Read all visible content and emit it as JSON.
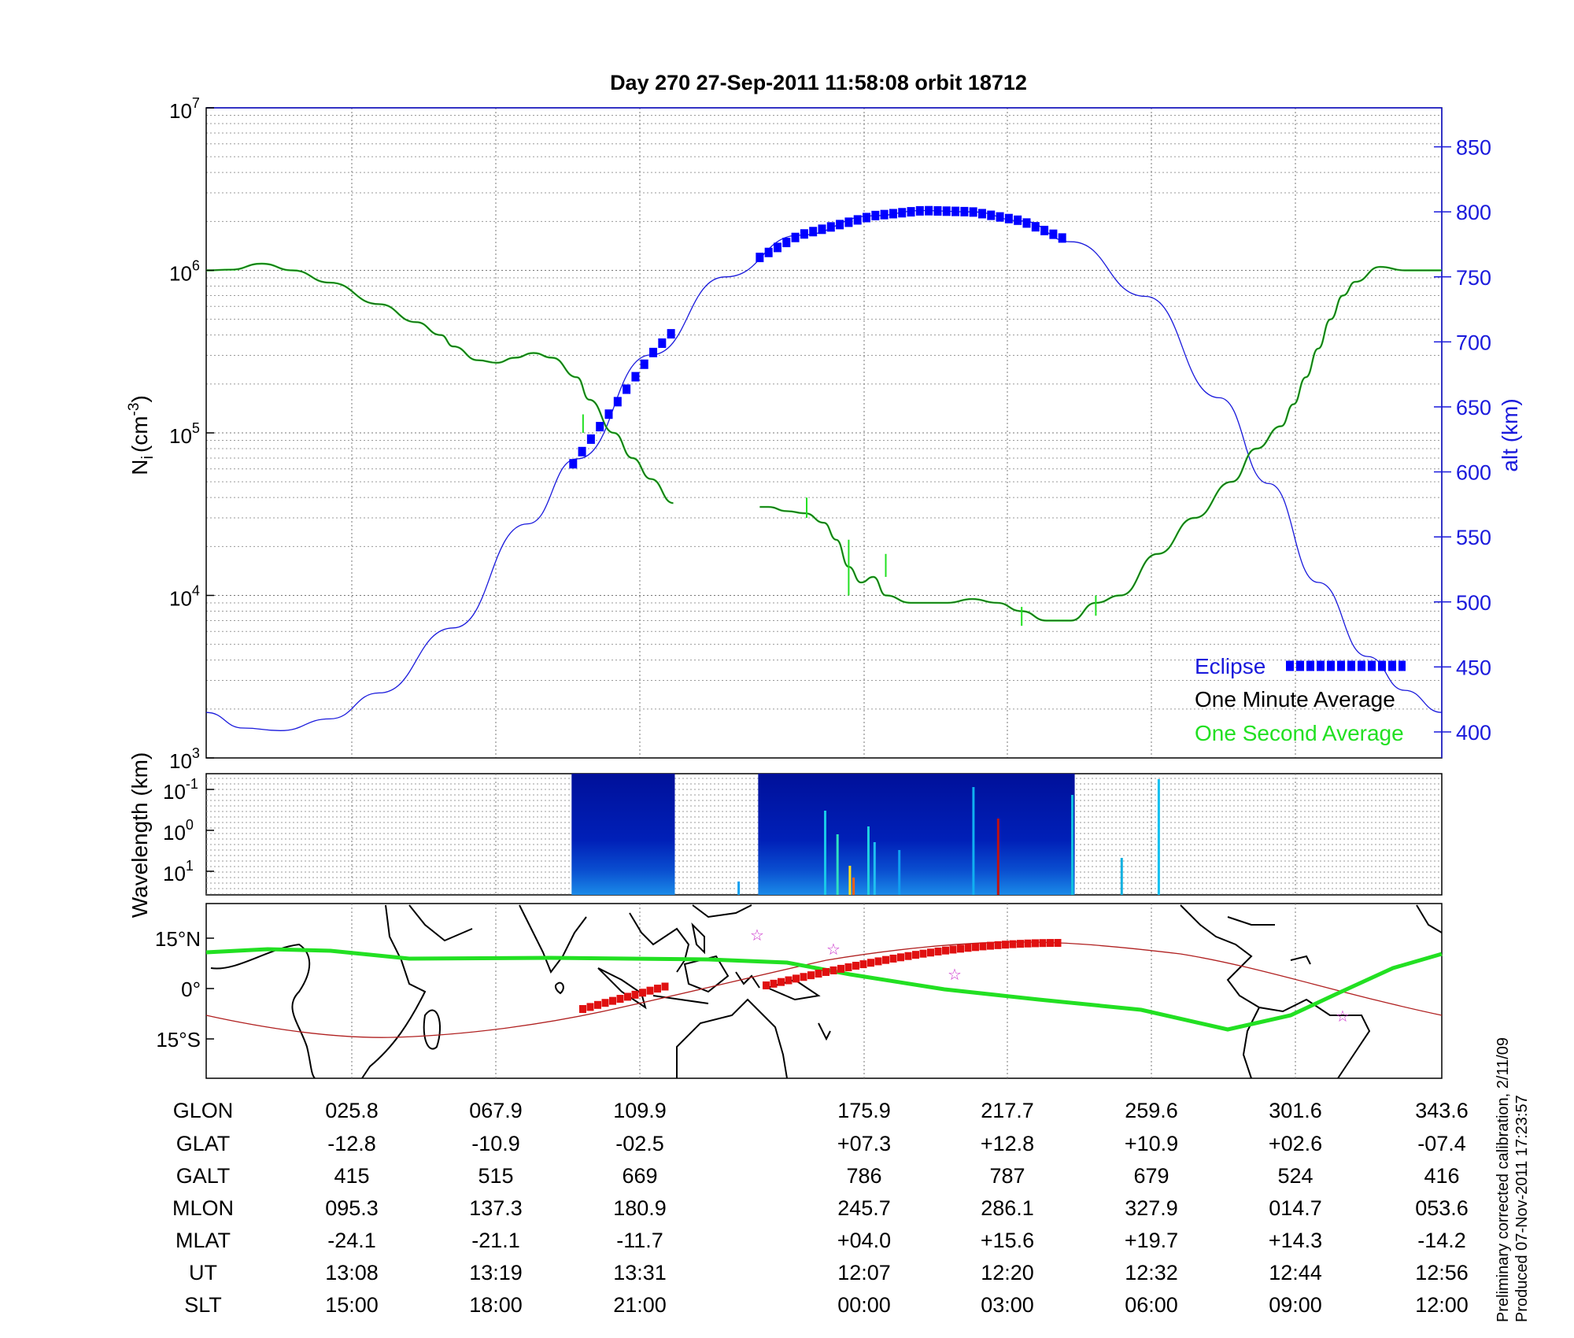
{
  "title": "Day 270  27-Sep-2011 11:58:08   orbit 18712",
  "colors": {
    "eclipse": "#0000ff",
    "one_minute": "#1e5a1e",
    "one_second": "#22e022",
    "alt_curve": "#1a1adc",
    "track_red": "#e01010",
    "track_green": "#22e022",
    "star": "#cc33cc"
  },
  "top_panel": {
    "ylabel_left": "N",
    "ylabel_left_sub": "i",
    "ylabel_left_unit": "(cm",
    "ylabel_left_sup": "-3",
    "ylabel_left_close": ")",
    "ylabel_right": "alt (km)",
    "left_ticks": [
      {
        "base": "10",
        "exp": "3"
      },
      {
        "base": "10",
        "exp": "4"
      },
      {
        "base": "10",
        "exp": "5"
      },
      {
        "base": "10",
        "exp": "6"
      },
      {
        "base": "10",
        "exp": "7"
      }
    ],
    "right_ticks": [
      "400",
      "450",
      "500",
      "550",
      "600",
      "650",
      "700",
      "750",
      "800",
      "850"
    ],
    "legend": {
      "eclipse": "Eclipse",
      "one_minute": "One Minute Average",
      "one_second": "One Second Average"
    }
  },
  "mid_panel": {
    "ylabel": "Wavelength (km)",
    "ticks": [
      {
        "base": "10",
        "exp": "-1"
      },
      {
        "base": "10",
        "exp": "0"
      },
      {
        "base": "10",
        "exp": "1"
      }
    ]
  },
  "map_panel": {
    "ticks": [
      "15°N",
      "0°",
      "15°S"
    ]
  },
  "table": {
    "labels": [
      "GLON",
      "GLAT",
      "GALT",
      "MLON",
      "MLAT",
      "UT",
      "SLT"
    ],
    "columns": [
      [
        "025.8",
        "-12.8",
        "415",
        "095.3",
        "-24.1",
        "13:08",
        "15:00"
      ],
      [
        "067.9",
        "-10.9",
        "515",
        "137.3",
        "-21.1",
        "13:19",
        "18:00"
      ],
      [
        "109.9",
        "-02.5",
        "669",
        "180.9",
        "-11.7",
        "13:31",
        "21:00"
      ],
      [
        "175.9",
        "+07.3",
        "786",
        "245.7",
        "+04.0",
        "12:07",
        "00:00"
      ],
      [
        "217.7",
        "+12.8",
        "787",
        "286.1",
        "+15.6",
        "12:20",
        "03:00"
      ],
      [
        "259.6",
        "+10.9",
        "679",
        "327.9",
        "+19.7",
        "12:32",
        "06:00"
      ],
      [
        "301.6",
        "+02.6",
        "524",
        "014.7",
        "+14.3",
        "12:44",
        "09:00"
      ],
      [
        "343.6",
        "-07.4",
        "416",
        "053.6",
        "-14.2",
        "12:56",
        "12:00"
      ]
    ]
  },
  "side_note": {
    "line1": "Preliminary corrected calibration, 2/11/09",
    "line2": "Produced 07-Nov-2011 17:23:57"
  },
  "chart_data": {
    "type": "line",
    "title": "Day 270  27-Sep-2011 11:58:08   orbit 18712",
    "x_labels_glon": [
      "025.8",
      "067.9",
      "109.9",
      "175.9",
      "217.7",
      "259.6",
      "301.6",
      "343.6"
    ],
    "y_left": {
      "label": "Ni (cm-3)",
      "scale": "log",
      "range": [
        1000,
        10000000
      ]
    },
    "y_right": {
      "label": "alt (km)",
      "range": [
        380,
        880
      ]
    },
    "grid": true,
    "legend_position": "bottom-right",
    "series": [
      {
        "name": "One Minute Average",
        "x_fraction": [
          0.0,
          0.02,
          0.045,
          0.07,
          0.1,
          0.14,
          0.17,
          0.19,
          0.2,
          0.22,
          0.235,
          0.25,
          0.265,
          0.28,
          0.3,
          0.31,
          0.33,
          0.345,
          0.36,
          0.378
        ],
        "values": [
          1000000,
          1010000,
          1100000,
          1000000,
          840000,
          620000,
          480000,
          400000,
          340000,
          280000,
          270000,
          290000,
          310000,
          290000,
          220000,
          160000,
          100000,
          70000,
          52000,
          37000
        ]
      },
      {
        "name": "One Minute Average",
        "x_fraction": [
          0.448,
          0.455,
          0.47,
          0.485,
          0.5,
          0.51,
          0.52,
          0.53,
          0.54,
          0.55,
          0.57,
          0.6,
          0.62,
          0.64,
          0.66,
          0.68,
          0.7,
          0.72,
          0.74,
          0.77,
          0.8,
          0.83,
          0.85,
          0.87,
          0.88,
          0.89,
          0.9,
          0.91,
          0.92,
          0.93,
          0.95,
          0.97,
          1.0
        ],
        "values": [
          35000,
          35000,
          33000,
          32000,
          28000,
          22000,
          15000,
          12000,
          13000,
          10000,
          9000,
          9000,
          9500,
          9000,
          8000,
          7000,
          7000,
          9000,
          10000,
          18000,
          30000,
          50000,
          80000,
          110000,
          150000,
          220000,
          330000,
          500000,
          700000,
          850000,
          1050000,
          1000000,
          1000000
        ]
      },
      {
        "name": "alt (km)",
        "x_fraction": [
          0.0,
          0.03,
          0.06,
          0.1,
          0.14,
          0.2,
          0.26,
          0.3,
          0.36,
          0.42,
          0.48,
          0.54,
          0.58,
          0.62,
          0.66,
          0.7,
          0.76,
          0.82,
          0.86,
          0.9,
          0.94,
          0.97,
          1.0
        ],
        "values": [
          415,
          403,
          401,
          410,
          430,
          480,
          560,
          610,
          690,
          750,
          782,
          797,
          801,
          800,
          793,
          777,
          735,
          657,
          591,
          515,
          458,
          432,
          415
        ]
      }
    ],
    "eclipse_intervals_x_fraction": [
      [
        0.297,
        0.378
      ],
      [
        0.448,
        0.694
      ]
    ]
  }
}
